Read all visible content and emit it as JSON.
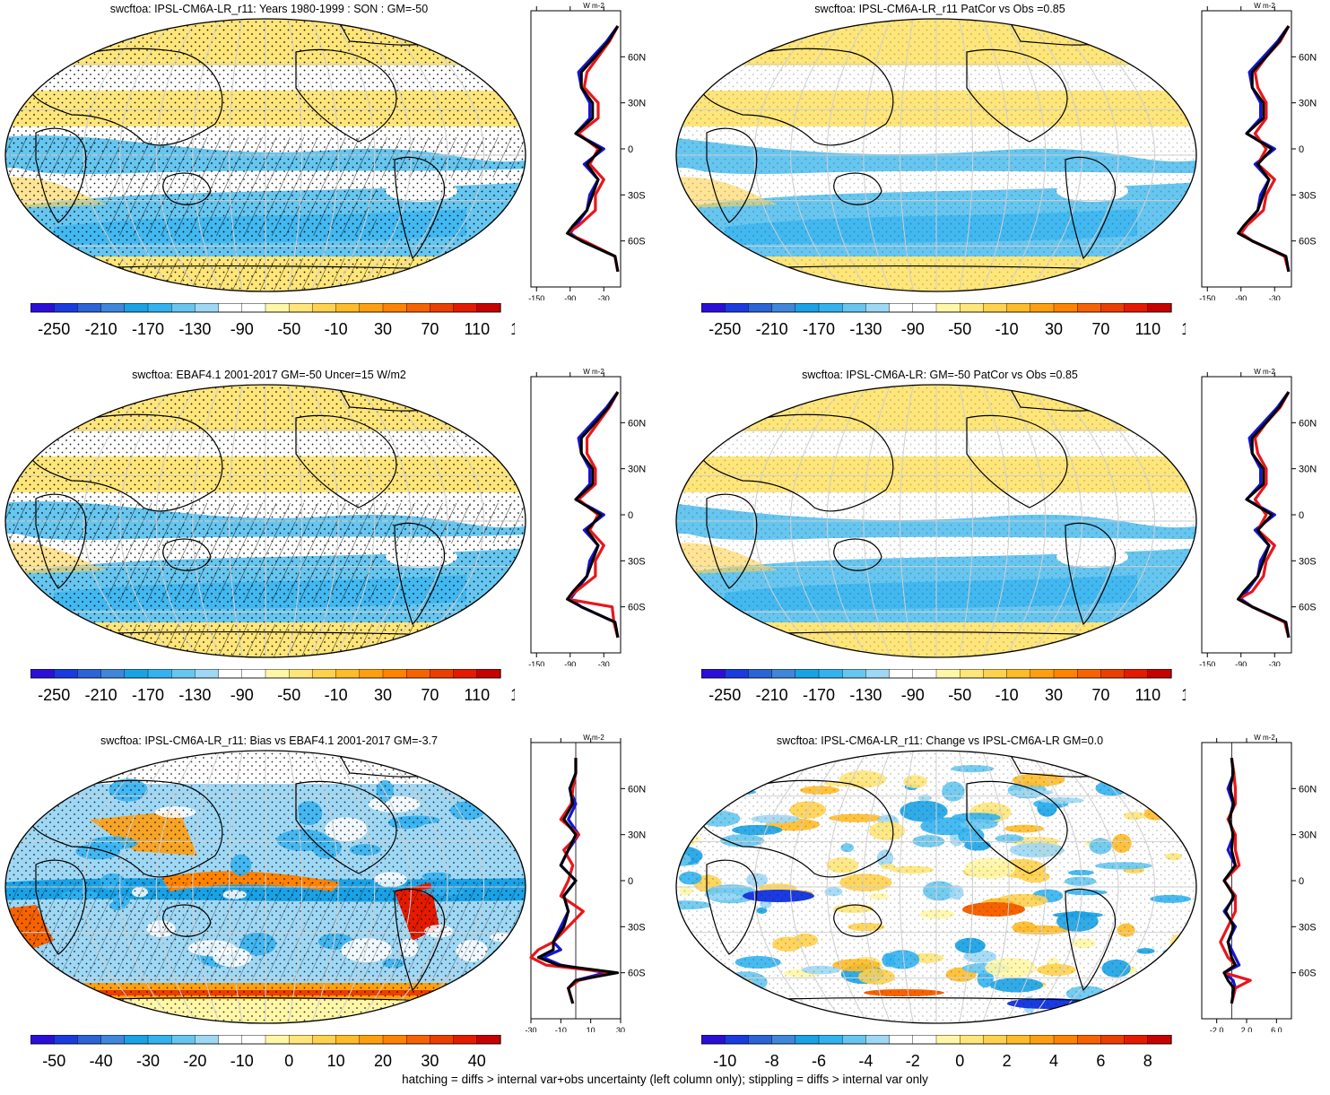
{
  "chart_data": [
    {
      "type": "heatmap",
      "title": "swcftoa: IPSL-CM6A-LR_r11: Years 1980-1999 : SON : GM=-50",
      "colorbar": {
        "ticks": [
          "-250",
          "-210",
          "-170",
          "-130",
          "-90",
          "-50",
          "-10",
          "30",
          "70",
          "110",
          "150"
        ],
        "range": [
          -270,
          170
        ],
        "palette": "full"
      },
      "zonal": {
        "xticks": [
          "-150",
          "-90",
          "-30"
        ],
        "xrange": [
          -160,
          0
        ],
        "unit_label": "W m-2",
        "lat_ticks": [
          "60N",
          "30N",
          "0",
          "30S",
          "60S"
        ],
        "zero_line": false,
        "lat": [
          -80,
          -70,
          -60,
          -55,
          -50,
          -40,
          -30,
          -20,
          -10,
          0,
          10,
          20,
          30,
          40,
          50,
          60,
          70,
          80
        ],
        "series": [
          {
            "name": "obs",
            "color": "#1515d6",
            "values": [
              -5,
              -10,
              -70,
              -90,
              -80,
              -60,
              -55,
              -40,
              -65,
              -30,
              -80,
              -55,
              -55,
              -70,
              -75,
              -50,
              -25,
              -5
            ]
          },
          {
            "name": "model_red",
            "color": "#e8161b",
            "values": [
              -5,
              -10,
              -65,
              -95,
              -75,
              -45,
              -45,
              -30,
              -55,
              -40,
              -75,
              -40,
              -40,
              -65,
              -60,
              -40,
              -20,
              -5
            ]
          },
          {
            "name": "model_black",
            "color": "#000000",
            "values": [
              -5,
              -10,
              -70,
              -95,
              -85,
              -60,
              -50,
              -40,
              -60,
              -35,
              -80,
              -50,
              -50,
              -70,
              -70,
              -45,
              -22,
              -5
            ]
          }
        ]
      },
      "map": {
        "hatch": true,
        "stipple": true
      }
    },
    {
      "type": "heatmap",
      "title": "swcftoa: IPSL-CM6A-LR_r11 PatCor vs Obs =0.85",
      "colorbar": {
        "ticks": [
          "-250",
          "-210",
          "-170",
          "-130",
          "-90",
          "-50",
          "-10",
          "30",
          "70",
          "110",
          "150"
        ],
        "range": [
          -270,
          170
        ],
        "palette": "full"
      },
      "zonal": {
        "xticks": [
          "-150",
          "-90",
          "-30"
        ],
        "xrange": [
          -160,
          0
        ],
        "unit_label": "W m-2",
        "lat_ticks": [
          "60N",
          "30N",
          "0",
          "30S",
          "60S"
        ],
        "zero_line": false,
        "lat": [
          -80,
          -70,
          -60,
          -55,
          -50,
          -40,
          -30,
          -20,
          -10,
          0,
          10,
          20,
          30,
          40,
          50,
          60,
          70,
          80
        ],
        "series": [
          {
            "name": "obs",
            "color": "#1515d6",
            "values": [
              -5,
              -10,
              -70,
              -90,
              -80,
              -60,
              -55,
              -40,
              -65,
              -30,
              -80,
              -55,
              -55,
              -70,
              -75,
              -50,
              -25,
              -5
            ]
          },
          {
            "name": "model_red",
            "color": "#e8161b",
            "values": [
              -5,
              -12,
              -70,
              -90,
              -80,
              -50,
              -45,
              -30,
              -60,
              -45,
              -65,
              -45,
              -45,
              -60,
              -65,
              -45,
              -20,
              -5
            ]
          },
          {
            "name": "model_black",
            "color": "#000000",
            "values": [
              -5,
              -10,
              -70,
              -95,
              -85,
              -60,
              -50,
              -40,
              -60,
              -35,
              -80,
              -50,
              -50,
              -70,
              -70,
              -45,
              -22,
              -5
            ]
          }
        ]
      },
      "map": {
        "hatch": false,
        "stipple": true
      }
    },
    {
      "type": "heatmap",
      "title": "swcftoa: EBAF4.1 2001-2017 GM=-50 Uncer=15 W/m2",
      "colorbar": {
        "ticks": [
          "-250",
          "-210",
          "-170",
          "-130",
          "-90",
          "-50",
          "-10",
          "30",
          "70",
          "110",
          "150"
        ],
        "range": [
          -270,
          170
        ],
        "palette": "full"
      },
      "zonal": {
        "xticks": [
          "-150",
          "-90",
          "-30"
        ],
        "xrange": [
          -160,
          0
        ],
        "unit_label": "W m-2",
        "lat_ticks": [
          "60N",
          "30N",
          "0",
          "30S",
          "60S"
        ],
        "zero_line": false,
        "lat": [
          -80,
          -70,
          -60,
          -55,
          -50,
          -40,
          -30,
          -20,
          -10,
          0,
          10,
          20,
          30,
          40,
          50,
          60,
          70,
          80
        ],
        "series": [
          {
            "name": "obs",
            "color": "#1515d6",
            "values": [
              -5,
              -10,
              -70,
              -90,
              -80,
              -60,
              -55,
              -40,
              -65,
              -30,
              -80,
              -55,
              -55,
              -70,
              -75,
              -50,
              -25,
              -5
            ]
          },
          {
            "name": "model_red",
            "color": "#e8161b",
            "values": [
              -5,
              -12,
              -15,
              -95,
              -80,
              -45,
              -45,
              -30,
              -55,
              -40,
              -75,
              -45,
              -45,
              -60,
              -60,
              -40,
              -20,
              -5
            ]
          },
          {
            "name": "model_black",
            "color": "#000000",
            "values": [
              -5,
              -10,
              -70,
              -95,
              -85,
              -60,
              -50,
              -40,
              -60,
              -35,
              -80,
              -50,
              -50,
              -70,
              -70,
              -45,
              -22,
              -5
            ]
          }
        ]
      },
      "map": {
        "hatch": true,
        "stipple": true
      }
    },
    {
      "type": "heatmap",
      "title": "swcftoa: IPSL-CM6A-LR: GM=-50 PatCor vs Obs =0.85",
      "colorbar": {
        "ticks": [
          "-250",
          "-210",
          "-170",
          "-130",
          "-90",
          "-50",
          "-10",
          "30",
          "70",
          "110",
          "150"
        ],
        "range": [
          -270,
          170
        ],
        "palette": "full"
      },
      "zonal": {
        "xticks": [
          "-150",
          "-90",
          "-30"
        ],
        "xrange": [
          -160,
          0
        ],
        "unit_label": "W m-2",
        "lat_ticks": [
          "60N",
          "30N",
          "0",
          "30S",
          "60S"
        ],
        "zero_line": false,
        "lat": [
          -80,
          -70,
          -60,
          -55,
          -50,
          -40,
          -30,
          -20,
          -10,
          0,
          10,
          20,
          30,
          40,
          50,
          60,
          70,
          80
        ],
        "series": [
          {
            "name": "obs",
            "color": "#1515d6",
            "values": [
              -5,
              -10,
              -70,
              -90,
              -80,
              -60,
              -55,
              -40,
              -65,
              -30,
              -80,
              -55,
              -55,
              -70,
              -75,
              -50,
              -25,
              -5
            ]
          },
          {
            "name": "model_red",
            "color": "#e8161b",
            "values": [
              -5,
              -12,
              -70,
              -95,
              -70,
              -50,
              -45,
              -30,
              -60,
              -45,
              -65,
              -45,
              -45,
              -60,
              -65,
              -45,
              -20,
              -5
            ]
          },
          {
            "name": "model_black",
            "color": "#000000",
            "values": [
              -5,
              -10,
              -70,
              -95,
              -85,
              -60,
              -50,
              -40,
              -60,
              -35,
              -80,
              -50,
              -50,
              -70,
              -70,
              -45,
              -22,
              -5
            ]
          }
        ]
      },
      "map": {
        "hatch": false,
        "stipple": true
      }
    },
    {
      "type": "heatmap",
      "title": "swcftoa: IPSL-CM6A-LR_r11: Bias vs EBAF4.1 2001-2017  GM=-3.7",
      "colorbar": {
        "ticks": [
          "-50",
          "-40",
          "-30",
          "-20",
          "-10",
          "0",
          "10",
          "20",
          "30",
          "40",
          "50"
        ],
        "range": [
          -55,
          55
        ],
        "palette": "full"
      },
      "zonal": {
        "xticks": [
          "-30",
          "-10",
          "10",
          "30"
        ],
        "xrange": [
          -30,
          30
        ],
        "unit_label": "W m-2",
        "lat_ticks": [
          "60N",
          "30N",
          "0",
          "30S",
          "60S"
        ],
        "zero_line": true,
        "lat": [
          -80,
          -70,
          -65,
          -60,
          -55,
          -50,
          -45,
          -40,
          -30,
          -20,
          -10,
          0,
          10,
          20,
          30,
          40,
          50,
          60,
          70,
          80
        ],
        "series": [
          {
            "name": "obs",
            "color": "#1515d6",
            "values": [
              -2,
              -5,
              0,
              20,
              -10,
              -22,
              -10,
              -15,
              -10,
              -5,
              -8,
              0,
              -10,
              -5,
              2,
              -5,
              0,
              -4,
              0,
              0
            ]
          },
          {
            "name": "model_red",
            "color": "#e8161b",
            "values": [
              -2,
              -5,
              2,
              25,
              -20,
              -30,
              -25,
              -15,
              -5,
              5,
              -10,
              -5,
              -2,
              -8,
              2,
              -10,
              -3,
              -2,
              0,
              0
            ]
          },
          {
            "name": "model_black",
            "color": "#000000",
            "values": [
              -2,
              -5,
              0,
              28,
              -12,
              -25,
              -15,
              -15,
              -8,
              -5,
              -8,
              0,
              -10,
              -5,
              0,
              -8,
              -2,
              -4,
              0,
              0
            ]
          }
        ]
      },
      "map": {
        "hatch": true,
        "stipple": true
      }
    },
    {
      "type": "heatmap",
      "title": "swcftoa: IPSL-CM6A-LR_r11: Change vs IPSL-CM6A-LR GM=0.0",
      "colorbar": {
        "ticks": [
          "-10",
          "-8",
          "-6",
          "-4",
          "-2",
          "0",
          "2",
          "4",
          "6",
          "8",
          "10"
        ],
        "range": [
          -11,
          11
        ],
        "palette": "full"
      },
      "zonal": {
        "xticks": [
          "-2.0",
          "2.0",
          "6.0"
        ],
        "xrange": [
          -4,
          8
        ],
        "unit_label": "W m-2",
        "lat_ticks": [
          "60N",
          "30N",
          "0",
          "30S",
          "60S"
        ],
        "zero_line": true,
        "lat": [
          -80,
          -70,
          -65,
          -60,
          -55,
          -50,
          -40,
          -30,
          -20,
          -10,
          0,
          10,
          20,
          30,
          40,
          50,
          60,
          70,
          80
        ],
        "series": [
          {
            "name": "obs",
            "color": "#1515d6",
            "values": [
              0,
              0.5,
              0.2,
              -1,
              1,
              0.5,
              -0.5,
              0.5,
              -1,
              0.5,
              -1,
              0.5,
              -0.5,
              0.3,
              -0.3,
              0.2,
              -0.5,
              0.3,
              0
            ]
          },
          {
            "name": "model_red",
            "color": "#e8161b",
            "values": [
              0,
              0.5,
              2.5,
              -1,
              0.5,
              -0.5,
              -1.5,
              -0.5,
              0.5,
              0.5,
              -1,
              1,
              0.5,
              0.5,
              -0.5,
              0.5,
              0.5,
              0.3,
              0
            ]
          },
          {
            "name": "model_black",
            "color": "#000000",
            "values": [
              0,
              0.3,
              -0.5,
              -1,
              0.5,
              0,
              -0.5,
              0.3,
              -0.8,
              0.3,
              -1,
              0.5,
              0,
              0.2,
              -0.3,
              0.3,
              -0.2,
              0.2,
              0
            ]
          }
        ]
      },
      "map": {
        "hatch": false,
        "stipple": true
      }
    }
  ],
  "footer": "hatching = diffs > internal var+obs uncertainty (left column only); stippling = diffs > internal var only",
  "palette_full": [
    "#2b0fd9",
    "#1a3be0",
    "#2b63d8",
    "#3f86dc",
    "#19a2e6",
    "#33b2f0",
    "#66c6f0",
    "#9fd8f5",
    "#ffffff",
    "#ffffff",
    "#fff7a8",
    "#ffe67a",
    "#ffd24e",
    "#ffbb28",
    "#ff9f10",
    "#ff8200",
    "#f76200",
    "#ec3e00",
    "#e51a00",
    "#c80000"
  ]
}
